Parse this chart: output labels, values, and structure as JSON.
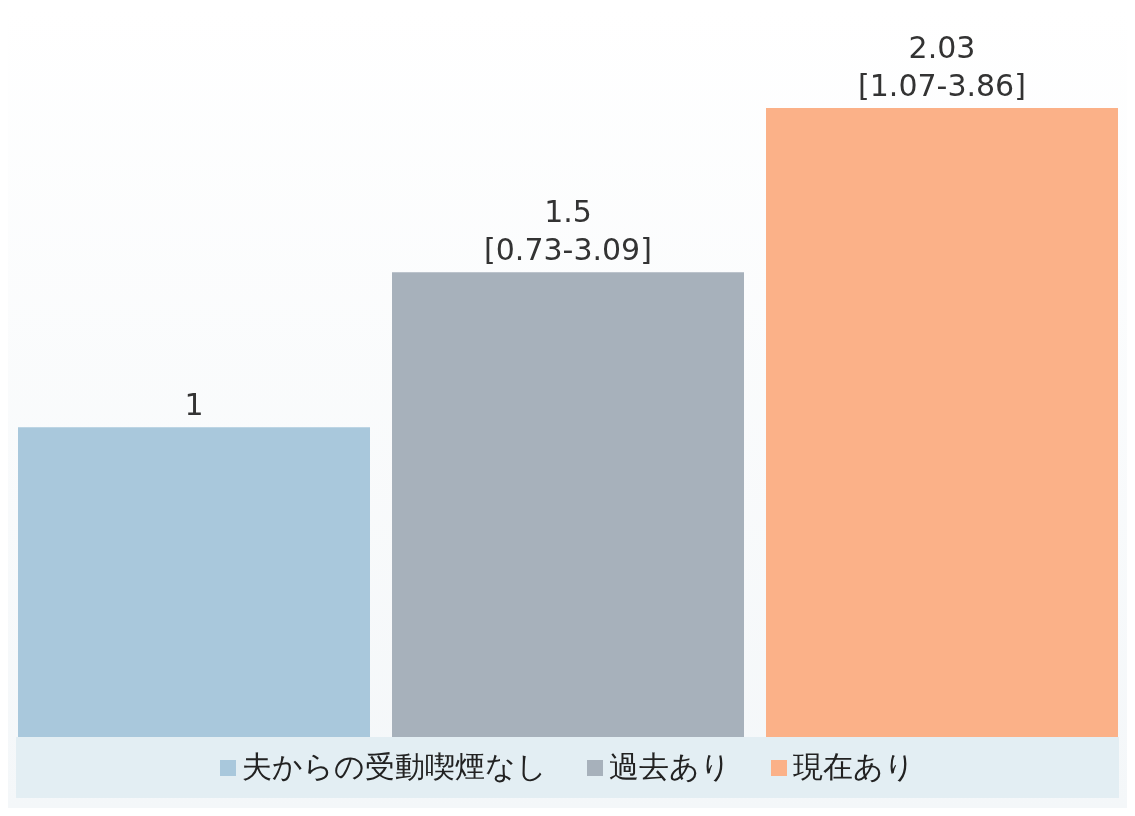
{
  "chart_data": {
    "type": "bar",
    "categories": [
      null
    ],
    "legend": "bottom",
    "series": [
      {
        "name": "夫からの受動喫煙なし",
        "color": "#a9c8dc",
        "values": [
          1
        ],
        "value_labels": [
          "1"
        ]
      },
      {
        "name": "過去あり",
        "color": "#a7b1bb",
        "values": [
          1.5
        ],
        "value_labels": [
          "1.5\n[0.73-3.09]"
        ]
      },
      {
        "name": "現在あり",
        "color": "#fbb188",
        "values": [
          2.03
        ],
        "value_labels": [
          "2.03\n[1.07-3.86]"
        ]
      }
    ]
  }
}
